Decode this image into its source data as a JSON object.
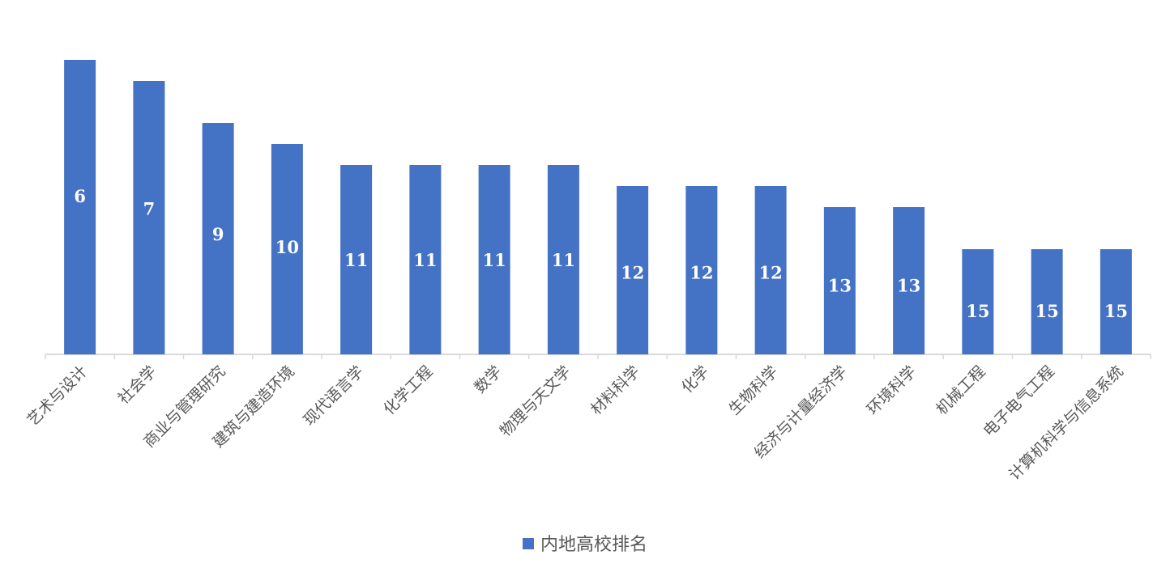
{
  "chart_data": {
    "type": "bar",
    "categories": [
      "艺术与设计",
      "社会学",
      "商业与管理研究",
      "建筑与建造环境",
      "现代语言学",
      "化学工程",
      "数学",
      "物理与天文学",
      "材料科学",
      "化学",
      "生物科学",
      "经济与计量经济学",
      "环境科学",
      "机械工程",
      "电子电气工程",
      "计算机科学与信息系统"
    ],
    "series": [
      {
        "name": "内地高校排名",
        "values": [
          6,
          7,
          9,
          10,
          11,
          11,
          11,
          11,
          12,
          12,
          12,
          13,
          13,
          15,
          15,
          15
        ],
        "color": "#4472C4"
      }
    ],
    "title": "",
    "xlabel": "",
    "ylabel": "",
    "bar_height_encoding": "smaller rank shown as taller bar",
    "data_labels": true,
    "grid": false,
    "legend_position": "bottom"
  }
}
